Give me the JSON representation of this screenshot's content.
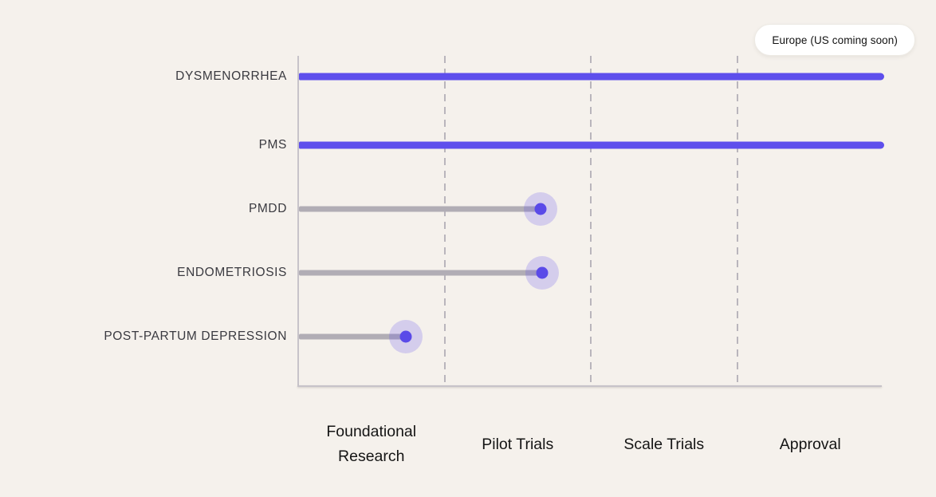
{
  "badge": {
    "label": "Europe (US coming soon)"
  },
  "colors": {
    "background": "#f5f1ec",
    "accent_purple": "#5e4fec",
    "dot_purple": "#5a4ae8",
    "halo": "rgba(94,79,236,0.22)",
    "bar_gray": "#b1adb5",
    "axis_gray": "#c7c3c9",
    "grid_gray": "#b9b5bc",
    "row_label_color": "#3a3a40",
    "phase_label_color": "#151515",
    "badge_bg": "#ffffff"
  },
  "chart_data": {
    "type": "bar",
    "subtype": "horizontal-lollipop-progress",
    "title": "",
    "legend": "Europe (US coming soon)",
    "legend_position": "top-right",
    "grid": "dashed-vertical",
    "x_range": [
      0,
      4
    ],
    "categories": [
      "Foundational Research",
      "Pilot Trials",
      "Scale Trials",
      "Approval"
    ],
    "rows": [
      {
        "label": "DYSMENORRHEA",
        "value": 4.0,
        "complete": true
      },
      {
        "label": "PMS",
        "value": 4.0,
        "complete": true
      },
      {
        "label": "PMDD",
        "value": 1.65,
        "complete": false
      },
      {
        "label": "ENDOMETRIOSIS",
        "value": 1.66,
        "complete": false
      },
      {
        "label": "POST-PARTUM DEPRESSION",
        "value": 0.73,
        "complete": false
      }
    ]
  },
  "layout_note": "rows rendered top to bottom in listed order"
}
